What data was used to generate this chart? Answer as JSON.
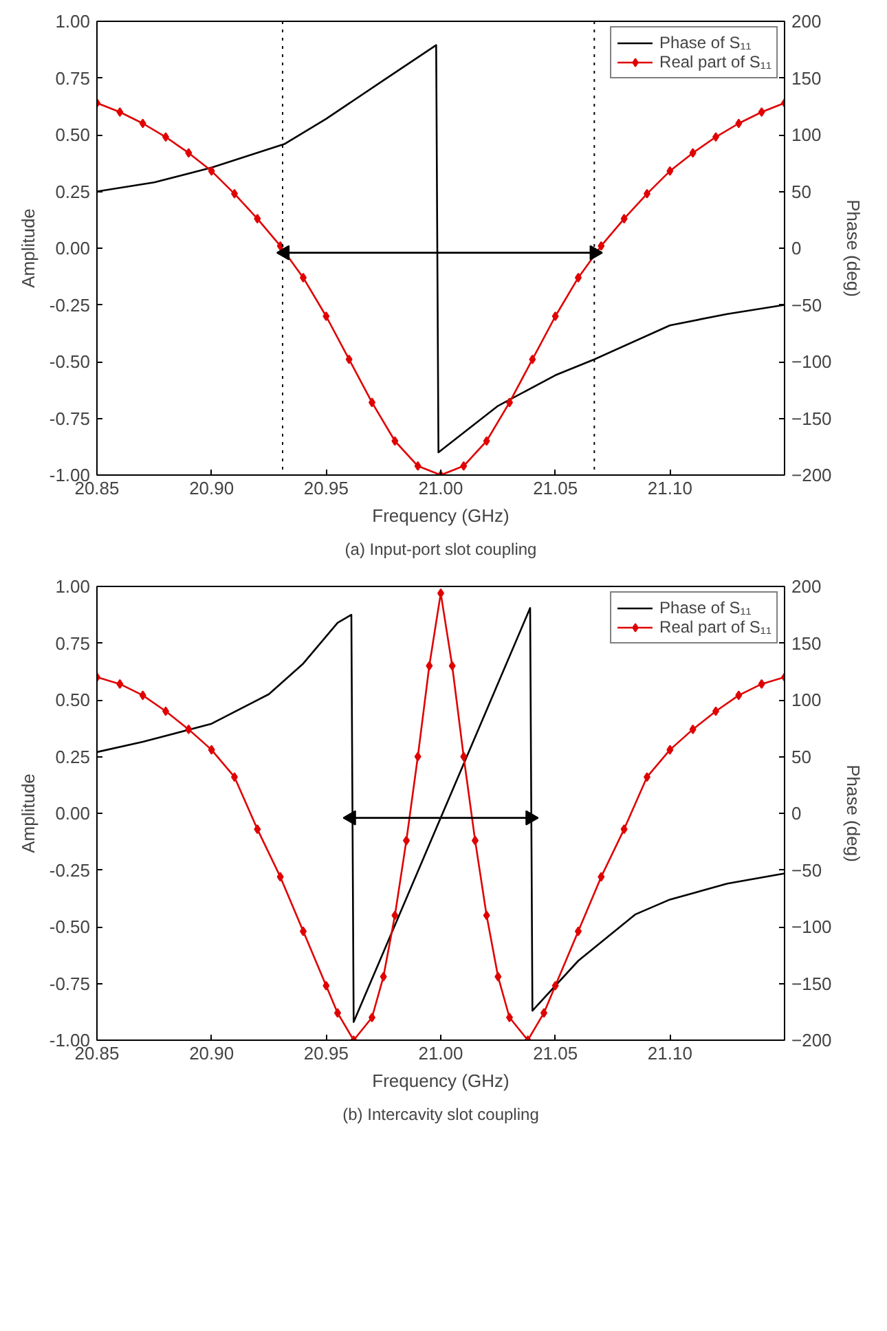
{
  "chart_data": [
    {
      "type": "line",
      "xlabel": "Frequency (GHz)",
      "ylabel": "Amplitude",
      "y2label": "Phase (deg)",
      "annotations": [
        "(a) Input-port slot coupling"
      ],
      "xlim": [
        20.85,
        21.15
      ],
      "xticks": [
        20.85,
        {
          "value": 20.9,
          "label": "20.90"
        },
        20.95,
        {
          "value": 21.0,
          "label": "21.00"
        },
        21.05,
        {
          "value": 21.1,
          "label": "21.10"
        }
      ],
      "ylim": [
        -1,
        1
      ],
      "yticks": [
        {
          "value": -1,
          "label": "-1.00"
        },
        {
          "value": -0.75,
          "label": "-0.75"
        },
        {
          "value": -0.5,
          "label": "-0.50"
        },
        {
          "value": -0.25,
          "label": "-0.25"
        },
        {
          "value": 0,
          "label": "0.00"
        },
        {
          "value": 0.25,
          "label": "0.25"
        },
        {
          "value": 0.5,
          "label": "0.50"
        },
        {
          "value": 0.75,
          "label": "0.75"
        },
        {
          "value": 1,
          "label": "1.00"
        }
      ],
      "y2lim": [
        -200,
        200
      ],
      "y2ticks": [
        -200,
        -150,
        -100,
        -50,
        0,
        50,
        100,
        150,
        200
      ],
      "grid": false,
      "legend": "top right",
      "ref_lines": [
        {
          "axis": "x",
          "value": 20.931,
          "color": "#000000",
          "line_style": "dotted"
        },
        {
          "axis": "x",
          "value": 21.067,
          "color": "#000000",
          "line_style": "dotted"
        }
      ],
      "series": [
        {
          "name": "Phase of S₁₁",
          "color": "#000000",
          "axis": "y2",
          "marker": "none",
          "x": [
            20.85,
            20.875,
            20.9,
            20.932,
            20.95,
            20.975,
            20.998,
            20.999,
            21.025,
            21.05,
            21.067,
            21.1,
            21.125,
            21.15
          ],
          "values": [
            50,
            58,
            71,
            92,
            114,
            148,
            179,
            -180,
            -139,
            -112,
            -98,
            -68,
            -58,
            -50
          ]
        },
        {
          "name": "Real part of S₁₁",
          "color": "#e00000",
          "marker": "diamond",
          "x": [
            20.85,
            20.86,
            20.87,
            20.88,
            20.89,
            20.9,
            20.91,
            20.92,
            20.93,
            20.94,
            20.95,
            20.96,
            20.97,
            20.98,
            20.99,
            21.0,
            21.01,
            21.02,
            21.03,
            21.04,
            21.05,
            21.06,
            21.07,
            21.08,
            21.09,
            21.1,
            21.11,
            21.12,
            21.13,
            21.14,
            21.15
          ],
          "values": [
            0.64,
            0.6,
            0.55,
            0.49,
            0.42,
            0.34,
            0.24,
            0.13,
            0.01,
            -0.13,
            -0.3,
            -0.49,
            -0.68,
            -0.85,
            -0.96,
            -1.0,
            -0.96,
            -0.85,
            -0.68,
            -0.49,
            -0.3,
            -0.13,
            0.01,
            0.13,
            0.24,
            0.34,
            0.42,
            0.49,
            0.55,
            0.6,
            0.64
          ]
        },
        {
          "color": "#000000",
          "marker": "triangle",
          "x": [
            20.932,
            21.067
          ],
          "values": [
            -0.02,
            -0.02
          ]
        }
      ]
    },
    {
      "type": "line",
      "xlabel": "Frequency (GHz)",
      "ylabel": "Amplitude",
      "y2label": "Phase (deg)",
      "annotations": [
        "(b) Intercavity slot coupling"
      ],
      "xlim": [
        20.85,
        21.15
      ],
      "xticks": [
        20.85,
        {
          "value": 20.9,
          "label": "20.90"
        },
        20.95,
        {
          "value": 21.0,
          "label": "21.00"
        },
        21.05,
        {
          "value": 21.1,
          "label": "21.10"
        }
      ],
      "ylim": [
        -1,
        1
      ],
      "yticks": [
        {
          "value": -1,
          "label": "-1.00"
        },
        {
          "value": -0.75,
          "label": "-0.75"
        },
        {
          "value": -0.5,
          "label": "-0.50"
        },
        {
          "value": -0.25,
          "label": "-0.25"
        },
        {
          "value": 0,
          "label": "0.00"
        },
        {
          "value": 0.25,
          "label": "0.25"
        },
        {
          "value": 0.5,
          "label": "0.50"
        },
        {
          "value": 0.75,
          "label": "0.75"
        },
        {
          "value": 1,
          "label": "1.00"
        }
      ],
      "y2lim": [
        -200,
        200
      ],
      "y2ticks": [
        -200,
        -150,
        -100,
        -50,
        0,
        50,
        100,
        150,
        200
      ],
      "grid": false,
      "legend": "top right",
      "series": [
        {
          "name": "Phase of S₁₁",
          "color": "#000000",
          "axis": "y2",
          "marker": "none",
          "x": [
            20.85,
            20.87,
            20.9,
            20.925,
            20.94,
            20.955,
            20.961,
            20.962,
            21.039,
            21.04,
            21.06,
            21.085,
            21.1,
            21.125,
            21.15
          ],
          "values": [
            54,
            63,
            79,
            105,
            132,
            168,
            175,
            -184,
            181,
            -174,
            -130,
            -89,
            -76,
            -62,
            -53
          ]
        },
        {
          "name": "Real part of S₁₁",
          "color": "#e00000",
          "marker": "diamond",
          "x": [
            20.85,
            20.86,
            20.87,
            20.88,
            20.89,
            20.9,
            20.91,
            20.92,
            20.93,
            20.94,
            20.95,
            20.955,
            20.962,
            20.97,
            20.975,
            20.98,
            20.985,
            20.99,
            20.995,
            21.0,
            21.005,
            21.01,
            21.015,
            21.02,
            21.025,
            21.03,
            21.038,
            21.045,
            21.05,
            21.06,
            21.07,
            21.08,
            21.09,
            21.1,
            21.11,
            21.12,
            21.13,
            21.14,
            21.15
          ],
          "values": [
            0.6,
            0.57,
            0.52,
            0.45,
            0.37,
            0.28,
            0.16,
            -0.07,
            -0.28,
            -0.52,
            -0.76,
            -0.88,
            -1.0,
            -0.9,
            -0.72,
            -0.45,
            -0.12,
            0.25,
            0.65,
            0.97,
            0.65,
            0.25,
            -0.12,
            -0.45,
            -0.72,
            -0.9,
            -1.0,
            -0.88,
            -0.76,
            -0.52,
            -0.28,
            -0.07,
            0.16,
            0.28,
            0.37,
            0.45,
            0.52,
            0.57,
            0.6
          ]
        },
        {
          "color": "#000000",
          "marker": "triangle",
          "x": [
            20.961,
            21.039
          ],
          "values": [
            -0.02,
            -0.02
          ]
        }
      ]
    }
  ]
}
